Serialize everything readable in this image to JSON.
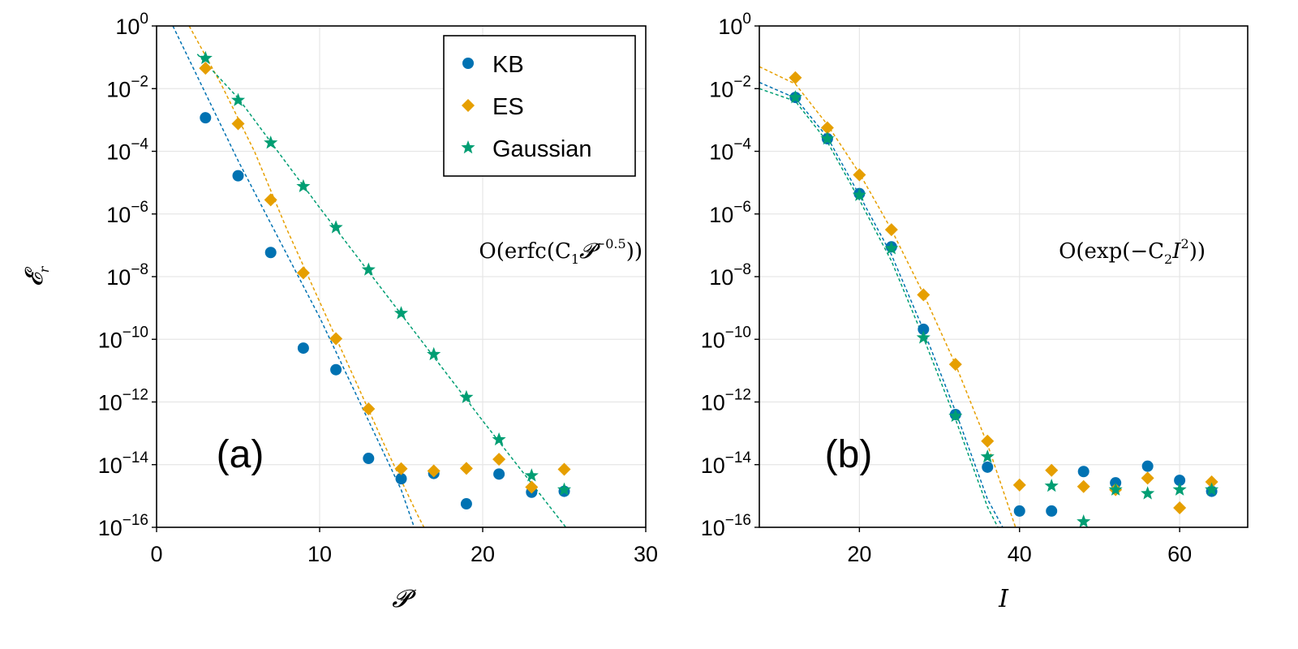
{
  "colors": {
    "KB": "#0072B2",
    "ES": "#E69F00",
    "Gaussian": "#009E73"
  },
  "chart_data": [
    {
      "type": "scatter",
      "panel_label": "(a)",
      "xlabel": "𝓟",
      "ylabel": "𝓔",
      "ylabel_sub": "r",
      "xlim": [
        0,
        30
      ],
      "xticks": [
        0,
        10,
        20,
        30
      ],
      "ylim_exponent": [
        -16,
        0
      ],
      "yscale": "log10",
      "yticks_exponent": [
        -16,
        -14,
        -12,
        -10,
        -8,
        -6,
        -4,
        -2,
        0
      ],
      "grid": true,
      "legend": {
        "placement": "top-right",
        "entries": [
          "KB",
          "ES",
          "Gaussian"
        ]
      },
      "annotation": {
        "text_prefix": "O(erfc(C",
        "sub": "1",
        "symbol": "𝓟",
        "sup": "−0.5",
        "text_suffix": "))"
      },
      "series": [
        {
          "name": "KB",
          "marker": "circle",
          "x": [
            3,
            5,
            7,
            9,
            11,
            13,
            15,
            17,
            19,
            21,
            23,
            25
          ],
          "log10_y": [
            -2.93,
            -4.78,
            -7.23,
            -10.28,
            -10.97,
            -13.8,
            -14.45,
            -14.28,
            -15.25,
            -14.3,
            -14.88,
            -14.85
          ]
        },
        {
          "name": "ES",
          "marker": "diamond",
          "x": [
            3,
            5,
            7,
            9,
            11,
            13,
            15,
            17,
            19,
            21,
            23,
            25
          ],
          "log10_y": [
            -1.35,
            -3.12,
            -5.55,
            -7.88,
            -9.98,
            -12.22,
            -14.13,
            -14.2,
            -14.12,
            -13.83,
            -14.72,
            -14.15
          ]
        },
        {
          "name": "Gaussian",
          "marker": "star",
          "x": [
            3,
            5,
            7,
            9,
            11,
            13,
            15,
            17,
            19,
            21,
            23,
            25
          ],
          "log10_y": [
            -1.03,
            -2.37,
            -3.73,
            -5.12,
            -6.43,
            -7.78,
            -9.17,
            -10.48,
            -11.85,
            -13.2,
            -14.35,
            -14.8
          ]
        }
      ],
      "fits": [
        {
          "name": "KB",
          "x": [
            1,
            5,
            10,
            15,
            15.8
          ],
          "log10_y": [
            0,
            -4.3,
            -9.3,
            -14.8,
            -16
          ]
        },
        {
          "name": "ES",
          "x": [
            2,
            4,
            6,
            8,
            10,
            12,
            14,
            16,
            16.4
          ],
          "log10_y": [
            0,
            -1.9,
            -4,
            -6.5,
            -8.8,
            -11.1,
            -13.4,
            -15.6,
            -16
          ]
        },
        {
          "name": "Gaussian",
          "x": [
            2.5,
            5,
            10,
            15,
            20,
            25.1
          ],
          "log10_y": [
            -0.9,
            -2.3,
            -5.8,
            -9.2,
            -12.6,
            -16
          ]
        }
      ]
    },
    {
      "type": "scatter",
      "panel_label": "(b)",
      "xlabel": "I",
      "xlim": [
        7.5,
        68.5
      ],
      "xticks": [
        20,
        40,
        60
      ],
      "ylim_exponent": [
        -16,
        0
      ],
      "yscale": "log10",
      "yticks_exponent": [
        -16,
        -14,
        -12,
        -10,
        -8,
        -6,
        -4,
        -2,
        0
      ],
      "grid": true,
      "annotation": {
        "text_prefix": "O(exp(−C",
        "sub": "2",
        "symbol": "I",
        "sup": "2",
        "text_suffix": "))"
      },
      "series": [
        {
          "name": "KB",
          "marker": "circle",
          "x": [
            12,
            16,
            20,
            24,
            28,
            32,
            36,
            40,
            44,
            48,
            52,
            56,
            60,
            64
          ],
          "log10_y": [
            -2.28,
            -3.6,
            -5.35,
            -7.05,
            -9.68,
            -12.4,
            -14.08,
            -15.48,
            -15.48,
            -14.22,
            -14.58,
            -14.05,
            -14.5,
            -14.85
          ]
        },
        {
          "name": "ES",
          "marker": "diamond",
          "x": [
            12,
            16,
            20,
            24,
            28,
            32,
            36,
            40,
            44,
            48,
            52,
            56,
            60,
            64
          ],
          "log10_y": [
            -1.65,
            -3.25,
            -4.75,
            -6.5,
            -8.58,
            -10.8,
            -13.25,
            -14.65,
            -14.18,
            -14.7,
            -14.8,
            -14.43,
            -15.38,
            -14.55
          ]
        },
        {
          "name": "Gaussian",
          "marker": "star",
          "x": [
            12,
            16,
            20,
            24,
            28,
            32,
            36,
            44,
            48,
            52,
            56,
            60,
            64
          ],
          "log10_y": [
            -2.28,
            -3.6,
            -5.4,
            -7.1,
            -9.95,
            -12.45,
            -13.75,
            -14.68,
            -15.82,
            -14.8,
            -14.92,
            -14.8,
            -14.8
          ]
        }
      ],
      "fits": [
        {
          "name": "KB",
          "x": [
            7.5,
            12,
            16,
            20,
            24,
            28,
            32,
            36,
            37.9
          ],
          "log10_y": [
            -1.8,
            -2.3,
            -3.55,
            -5.4,
            -7.3,
            -9.7,
            -12.3,
            -15.1,
            -16
          ]
        },
        {
          "name": "ES",
          "x": [
            7.5,
            12,
            16,
            20,
            24,
            28,
            32,
            36,
            39.5
          ],
          "log10_y": [
            -1.3,
            -1.85,
            -3.15,
            -4.7,
            -6.5,
            -8.55,
            -10.8,
            -13.35,
            -16
          ]
        },
        {
          "name": "Gaussian",
          "x": [
            7.5,
            12,
            16,
            20,
            24,
            28,
            32,
            36,
            37.3
          ],
          "log10_y": [
            -2.0,
            -2.4,
            -3.7,
            -5.55,
            -7.5,
            -9.95,
            -12.55,
            -15.35,
            -16
          ]
        }
      ]
    }
  ]
}
